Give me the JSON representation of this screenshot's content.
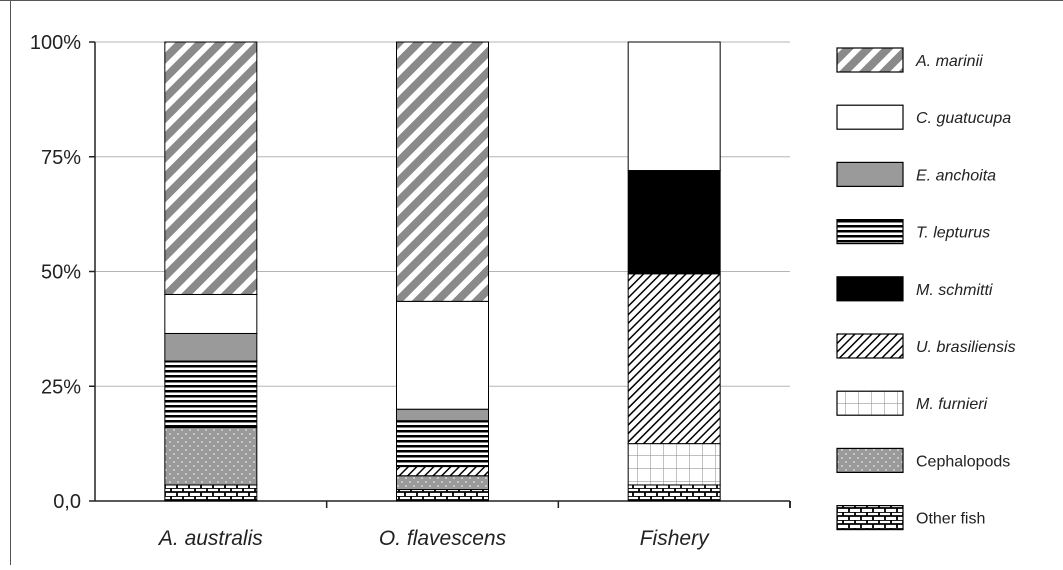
{
  "chart_data": {
    "type": "bar",
    "stacked": true,
    "percent": true,
    "categories": [
      "A. australis",
      "O. flavescens",
      "Fishery"
    ],
    "y_ticks": [
      "0,0",
      "25%",
      "50%",
      "75%",
      "100%"
    ],
    "ylim": [
      0,
      100
    ],
    "grid": true,
    "legend_position": "right",
    "series": [
      {
        "name": "Other fish",
        "pattern": "brick",
        "values": [
          3.5,
          2.5,
          3.5
        ]
      },
      {
        "name": "Cephalopods",
        "pattern": "dots",
        "values": [
          12.5,
          3.0,
          0
        ]
      },
      {
        "name": "M. furnieri",
        "pattern": "grid",
        "values": [
          0,
          0,
          9.0
        ]
      },
      {
        "name": "U. brasiliensis",
        "pattern": "thin-diagonal",
        "values": [
          0,
          2.0,
          37.0
        ]
      },
      {
        "name": "M. schmitti",
        "pattern": "solid-black",
        "values": [
          0,
          0,
          22.5
        ]
      },
      {
        "name": "T. lepturus",
        "pattern": "horizontal",
        "values": [
          14.5,
          10.0,
          0
        ]
      },
      {
        "name": "E. anchoita",
        "pattern": "solid-gray",
        "values": [
          6.0,
          2.5,
          0
        ]
      },
      {
        "name": "C. guatucupa",
        "pattern": "white",
        "values": [
          8.5,
          23.5,
          28.0
        ]
      },
      {
        "name": "A. marinii",
        "pattern": "wide-diagonal",
        "values": [
          55.0,
          56.5,
          0
        ]
      }
    ],
    "legend_order": [
      "A. marinii",
      "C. guatucupa",
      "E. anchoita",
      "T. lepturus",
      "M. schmitti",
      "U. brasiliensis",
      "M. furnieri",
      "Cephalopods",
      "Other fish"
    ]
  }
}
